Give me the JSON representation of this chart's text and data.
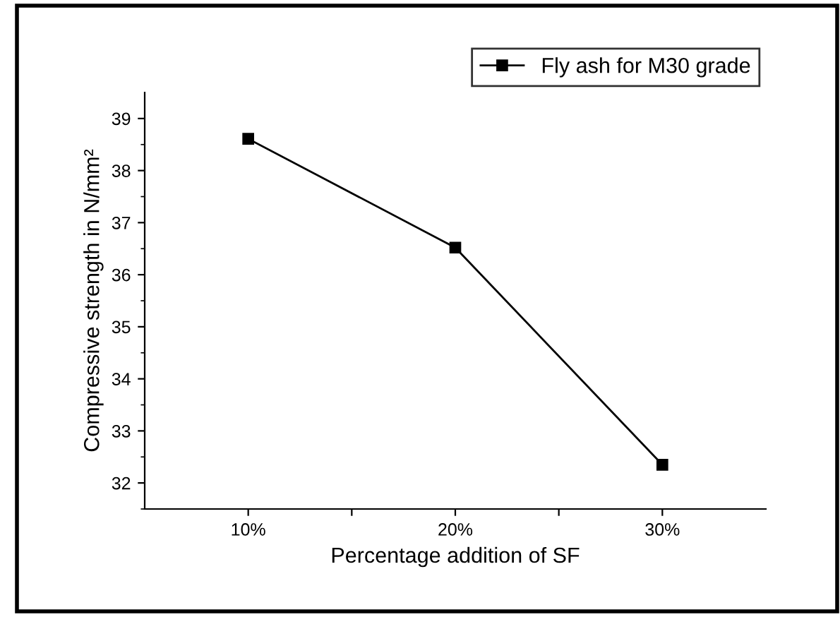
{
  "chart_data": {
    "type": "line",
    "xlabel": "Percentage addition of SF",
    "ylabel": "Compressive strength in N/mm²",
    "x": [
      10,
      20,
      30
    ],
    "series": [
      {
        "name": "Fly ash for M30 grade",
        "color": "#000000",
        "values": [
          38.61,
          36.52,
          32.35
        ]
      }
    ],
    "xlim": [
      5,
      35
    ],
    "xticks": [
      {
        "value": 10,
        "label": "10%"
      },
      {
        "value": 15,
        "label": null
      },
      {
        "value": 20,
        "label": "20%"
      },
      {
        "value": 25,
        "label": null
      },
      {
        "value": 30,
        "label": "30%"
      }
    ],
    "ylim": [
      31.5,
      39.5
    ],
    "yticks": [
      32,
      33,
      34,
      35,
      36,
      37,
      38,
      39
    ],
    "marker": "square",
    "line_style": "solid",
    "legend": "top right",
    "grid": false
  }
}
